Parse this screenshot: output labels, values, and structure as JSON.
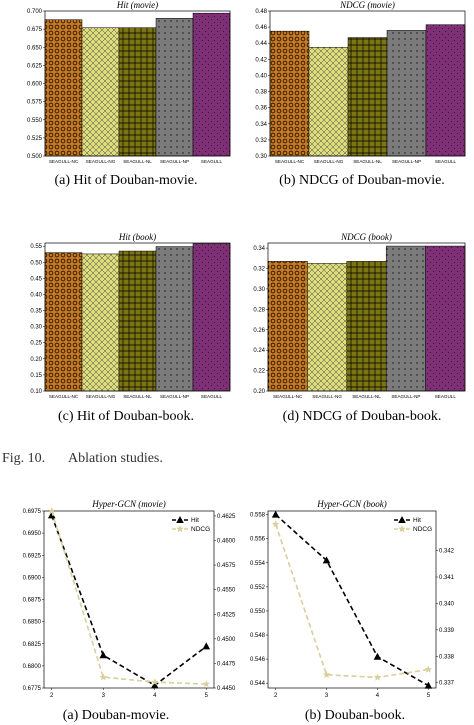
{
  "figure_caption": {
    "label": "Fig. 10.",
    "text": "Ablation studies."
  },
  "colors": {
    "SEAGULL-NC": "#c87a22",
    "SEAGULL-NG": "#dedd7c",
    "SEAGULL-NL": "#7a7412",
    "SEAGULL-NP": "#7b7b7b",
    "SEAGULL": "#7e2f76",
    "hit_line": "#000000",
    "ndcg_line": "#d8cf9a"
  },
  "chart_data": [
    {
      "id": "a",
      "type": "bar",
      "title": "Hit (movie)",
      "caption": "(a)  Hit of Douban-movie.",
      "categories": [
        "SEAGULL-NC",
        "SEAGULL-NG",
        "SEAGULL-NL",
        "SEAGULL-NP",
        "SEAGULL"
      ],
      "values": [
        0.688,
        0.677,
        0.677,
        0.69,
        0.697
      ],
      "ylim": [
        0.5,
        0.7
      ],
      "yticks": [
        "0.500",
        "0.525",
        "0.550",
        "0.575",
        "0.600",
        "0.625",
        "0.650",
        "0.675",
        "0.700"
      ],
      "hatches": [
        "circles",
        "crosshatch",
        "grid",
        "dots",
        "smalldots"
      ]
    },
    {
      "id": "b",
      "type": "bar",
      "title": "NDCG (movie)",
      "caption": "(b)  NDCG of Douban-movie.",
      "categories": [
        "SEAGULL-NC",
        "SEAGULL-NG",
        "SEAGULL-NL",
        "SEAGULL-NP",
        "SEAGULL"
      ],
      "values": [
        0.455,
        0.435,
        0.447,
        0.456,
        0.463
      ],
      "ylim": [
        0.3,
        0.48
      ],
      "yticks": [
        "0.30",
        "0.32",
        "0.34",
        "0.36",
        "0.38",
        "0.40",
        "0.42",
        "0.44",
        "0.46",
        "0.48"
      ],
      "hatches": [
        "circles",
        "crosshatch",
        "grid",
        "dots",
        "smalldots"
      ]
    },
    {
      "id": "c",
      "type": "bar",
      "title": "Hit (book)",
      "caption": "(c)  Hit of Douban-book.",
      "categories": [
        "SEAGULL-NC",
        "SEAGULL-NG",
        "SEAGULL-NL",
        "SEAGULL-NP",
        "SEAGULL"
      ],
      "values": [
        0.53,
        0.526,
        0.535,
        0.549,
        0.558
      ],
      "ylim": [
        0.1,
        0.56
      ],
      "yticks": [
        "0.10",
        "0.15",
        "0.20",
        "0.25",
        "0.30",
        "0.35",
        "0.40",
        "0.45",
        "0.50",
        "0.55"
      ],
      "hatches": [
        "circles",
        "crosshatch",
        "grid",
        "dots",
        "smalldots"
      ]
    },
    {
      "id": "d",
      "type": "bar",
      "title": "NDCG (book)",
      "caption": "(d)  NDCG of Douban-book.",
      "categories": [
        "SEAGULL-NC",
        "SEAGULL-NG",
        "SEAGULL-NL",
        "SEAGULL-NP",
        "SEAGULL"
      ],
      "values": [
        0.327,
        0.325,
        0.327,
        0.342,
        0.342
      ],
      "ylim": [
        0.2,
        0.345
      ],
      "yticks": [
        "0.20",
        "0.22",
        "0.24",
        "0.26",
        "0.28",
        "0.30",
        "0.32",
        "0.34"
      ],
      "hatches": [
        "circles",
        "crosshatch",
        "grid",
        "dots",
        "smalldots"
      ]
    },
    {
      "id": "e",
      "type": "line",
      "title": "Hyper-GCN (movie)",
      "caption": "(a)  Douban-movie.",
      "x": [
        2,
        3,
        4,
        5
      ],
      "xticks": [
        "2",
        "3",
        "4",
        "5"
      ],
      "legend": "top-right",
      "series": [
        {
          "name": "Hit",
          "axis": "left",
          "marker": "triangle",
          "values": [
            0.697,
            0.6812,
            0.6778,
            0.6822
          ]
        },
        {
          "name": "NDCG",
          "axis": "right",
          "marker": "star",
          "values": [
            0.463,
            0.4461,
            0.4456,
            0.4454
          ]
        }
      ],
      "ylim_left": [
        0.6775,
        0.6975
      ],
      "yticks_left": [
        "0.6775",
        "0.6800",
        "0.6825",
        "0.6850",
        "0.6875",
        "0.6900",
        "0.6925",
        "0.6950",
        "0.6975"
      ],
      "ylim_right": [
        0.445,
        0.463
      ],
      "yticks_right": [
        "0.4450",
        "0.4475",
        "0.4500",
        "0.4525",
        "0.4550",
        "0.4575",
        "0.4600",
        "0.4625"
      ]
    },
    {
      "id": "f",
      "type": "line",
      "title": "Hyper-GCN (book)",
      "caption": "(b)  Douban-book.",
      "x": [
        2,
        3,
        4,
        5
      ],
      "xticks": [
        "2",
        "3",
        "4",
        "5"
      ],
      "legend": "top-right",
      "series": [
        {
          "name": "Hit",
          "axis": "left",
          "marker": "triangle",
          "values": [
            0.558,
            0.5542,
            0.5462,
            0.5438
          ]
        },
        {
          "name": "NDCG",
          "axis": "right",
          "marker": "star",
          "values": [
            0.343,
            0.3373,
            0.3372,
            0.3375
          ]
        }
      ],
      "ylim_left": [
        0.5436,
        0.5583
      ],
      "yticks_left": [
        "0.544",
        "0.546",
        "0.548",
        "0.550",
        "0.552",
        "0.554",
        "0.556",
        "0.558"
      ],
      "ylim_right": [
        0.3368,
        0.3435
      ],
      "yticks_right": [
        "0.337",
        "0.338",
        "0.339",
        "0.340",
        "0.341",
        "0.342"
      ]
    }
  ]
}
